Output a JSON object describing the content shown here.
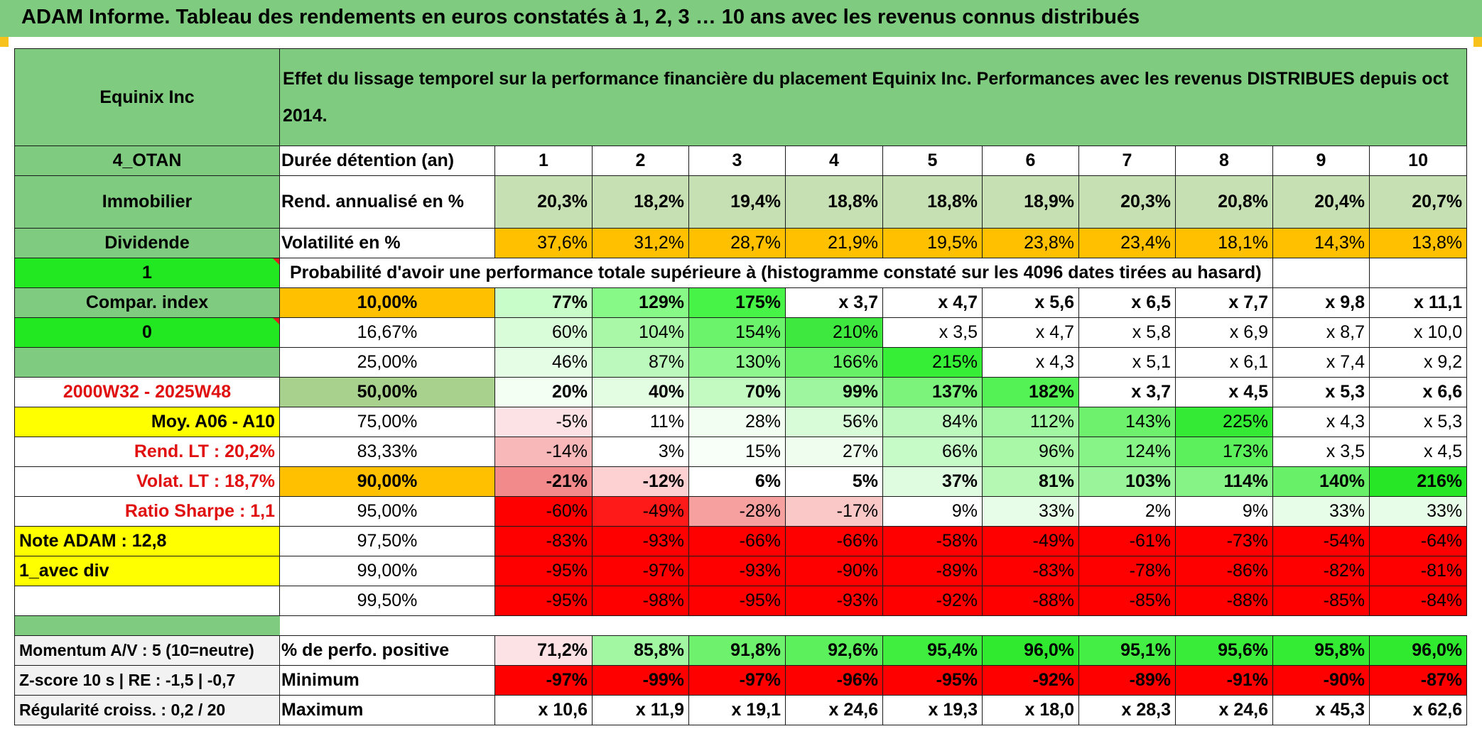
{
  "title": "ADAM Informe. Tableau des rendements en euros constatés à 1, 2, 3 … 10 ans avec les revenus connus distribués",
  "colors": {
    "header_green": "#7fcb7f",
    "accent_orange": "#ffc000",
    "bright_green": "#22e822",
    "bright_red": "#ff0000",
    "yellow": "#ffff00",
    "row_label_green": "#7fcb7f"
  },
  "sidebar": {
    "name": "Equinix Inc",
    "code": "4_OTAN",
    "sector": "Immobilier",
    "type": "Dividende",
    "flag1": "1",
    "compar_index": "Compar. index",
    "flag0": "0",
    "period": "2000W32 - 2025W48",
    "moy": "Moy. A06 - A10",
    "rend_lt": "Rend. LT :   20,2%",
    "volat_lt": "Volat. LT :   18,7%",
    "sharpe": "Ratio Sharpe :    1,1",
    "note": "Note ADAM : 12,8",
    "avec_div": "1_avec div",
    "momentum": "Momentum A/V : 5 (10=neutre)",
    "zscore": "Z-score 10 s | RE : -1,5 | -0,7",
    "regularite": "Régularité croiss. : 0,2 / 20"
  },
  "header": {
    "description": "Effet du lissage temporel sur la performance financière du placement Equinix Inc. Performances avec les revenus DISTRIBUES depuis oct 2014."
  },
  "years_label": "Durée détention (an)",
  "years": [
    "1",
    "2",
    "3",
    "4",
    "5",
    "6",
    "7",
    "8",
    "9",
    "10"
  ],
  "rend_label": "Rend. annualisé en %",
  "rend": [
    "20,3%",
    "18,2%",
    "19,4%",
    "18,8%",
    "18,8%",
    "18,9%",
    "20,3%",
    "20,8%",
    "20,4%",
    "20,7%"
  ],
  "vol_label": "Volatilité en %",
  "vol": [
    "37,6%",
    "31,2%",
    "28,7%",
    "21,9%",
    "19,5%",
    "23,8%",
    "23,4%",
    "18,1%",
    "14,3%",
    "13,8%"
  ],
  "prob_title": "Probabilité d'avoir une performance totale supérieure à (histogramme constaté sur les 4096 dates tirées au hasard)",
  "prob_rows": [
    {
      "pct": "10,00%",
      "values": [
        "77%",
        "129%",
        "175%",
        "x 3,7",
        "x 4,7",
        "x 5,6",
        "x 6,5",
        "x 7,7",
        "x 9,8",
        "x 11,1"
      ]
    },
    {
      "pct": "16,67%",
      "values": [
        "60%",
        "104%",
        "154%",
        "210%",
        "x 3,5",
        "x 4,7",
        "x 5,8",
        "x 6,9",
        "x 8,7",
        "x 10,0"
      ]
    },
    {
      "pct": "25,00%",
      "values": [
        "46%",
        "87%",
        "130%",
        "166%",
        "215%",
        "x 4,3",
        "x 5,1",
        "x 6,1",
        "x 7,4",
        "x 9,2"
      ]
    },
    {
      "pct": "50,00%",
      "values": [
        "20%",
        "40%",
        "70%",
        "99%",
        "137%",
        "182%",
        "x 3,7",
        "x 4,5",
        "x 5,3",
        "x 6,6"
      ]
    },
    {
      "pct": "75,00%",
      "values": [
        "-5%",
        "11%",
        "28%",
        "56%",
        "84%",
        "112%",
        "143%",
        "225%",
        "x 4,3",
        "x 5,3"
      ]
    },
    {
      "pct": "83,33%",
      "values": [
        "-14%",
        "3%",
        "15%",
        "27%",
        "66%",
        "96%",
        "124%",
        "173%",
        "x 3,5",
        "x 4,5"
      ]
    },
    {
      "pct": "90,00%",
      "values": [
        "-21%",
        "-12%",
        "6%",
        "5%",
        "37%",
        "81%",
        "103%",
        "114%",
        "140%",
        "216%"
      ]
    },
    {
      "pct": "95,00%",
      "values": [
        "-60%",
        "-49%",
        "-28%",
        "-17%",
        "9%",
        "33%",
        "2%",
        "9%",
        "33%",
        "33%"
      ]
    },
    {
      "pct": "97,50%",
      "values": [
        "-83%",
        "-93%",
        "-66%",
        "-66%",
        "-58%",
        "-49%",
        "-61%",
        "-73%",
        "-54%",
        "-64%"
      ]
    },
    {
      "pct": "99,00%",
      "values": [
        "-95%",
        "-97%",
        "-93%",
        "-90%",
        "-89%",
        "-83%",
        "-78%",
        "-86%",
        "-82%",
        "-81%"
      ]
    },
    {
      "pct": "99,50%",
      "values": [
        "-95%",
        "-98%",
        "-95%",
        "-93%",
        "-92%",
        "-88%",
        "-85%",
        "-88%",
        "-85%",
        "-84%"
      ]
    }
  ],
  "positive_label": "% de perfo. positive",
  "positive": [
    "71,2%",
    "85,8%",
    "91,8%",
    "92,6%",
    "95,4%",
    "96,0%",
    "95,1%",
    "95,6%",
    "95,8%",
    "96,0%"
  ],
  "min_label": "Minimum",
  "min": [
    "-97%",
    "-99%",
    "-97%",
    "-96%",
    "-95%",
    "-92%",
    "-89%",
    "-91%",
    "-90%",
    "-87%"
  ],
  "max_label": "Maximum",
  "max": [
    "x 10,6",
    "x 11,9",
    "x 19,1",
    "x 24,6",
    "x 19,3",
    "x 18,0",
    "x 28,3",
    "x 24,6",
    "x 45,3",
    "x 62,6"
  ],
  "cell_colors": {
    "rend": [
      "#c6e0b4",
      "#c6e0b4",
      "#c6e0b4",
      "#c6e0b4",
      "#c6e0b4",
      "#c6e0b4",
      "#c6e0b4",
      "#c6e0b4",
      "#c6e0b4",
      "#c6e0b4"
    ],
    "vol": [
      "#ffc000",
      "#ffc000",
      "#ffc000",
      "#ffc000",
      "#ffc000",
      "#ffc000",
      "#ffc000",
      "#ffc000",
      "#ffc000",
      "#ffc000"
    ],
    "prob": [
      [
        "#c8fcc8",
        "#86f986",
        "#48f348",
        "#ffffff",
        "#ffffff",
        "#ffffff",
        "#ffffff",
        "#ffffff",
        "#ffffff",
        "#ffffff"
      ],
      [
        "#d8fdd8",
        "#a8f8a8",
        "#6cf36c",
        "#3ee83e",
        "#ffffff",
        "#ffffff",
        "#ffffff",
        "#ffffff",
        "#ffffff",
        "#ffffff"
      ],
      [
        "#e4fde4",
        "#bcf9bc",
        "#8ef78e",
        "#66f166",
        "#36ee36",
        "#ffffff",
        "#ffffff",
        "#ffffff",
        "#ffffff",
        "#ffffff"
      ],
      [
        "#f4fff4",
        "#e2fde2",
        "#c2fac2",
        "#9ef69e",
        "#7cf47c",
        "#54f254",
        "#ffffff",
        "#ffffff",
        "#ffffff",
        "#ffffff"
      ],
      [
        "#fde2e5",
        "#ffffff",
        "#f2fef2",
        "#d8fbd8",
        "#bcf9bc",
        "#a2f7a2",
        "#6ef26e",
        "#34ea34",
        "#ffffff",
        "#ffffff"
      ],
      [
        "#f8b8ba",
        "#ffffff",
        "#f8fff8",
        "#eefdee",
        "#c6fac6",
        "#a8f8a8",
        "#86f486",
        "#5cf05c",
        "#ffffff",
        "#ffffff"
      ],
      [
        "#f28a8c",
        "#fdd0d2",
        "#ffffff",
        "#ffffff",
        "#e0fce0",
        "#b4f8b4",
        "#9af59a",
        "#86f386",
        "#68f068",
        "#26e626"
      ],
      [
        "#ff0000",
        "#ff1a1a",
        "#f7a0a0",
        "#fbc8c8",
        "#ffffff",
        "#e8fde8",
        "#ffffff",
        "#ffffff",
        "#e8fde8",
        "#e8fde8"
      ],
      [
        "#ff0000",
        "#ff0000",
        "#ff0000",
        "#ff0000",
        "#ff0000",
        "#ff0000",
        "#ff0000",
        "#ff0000",
        "#ff0000",
        "#ff0000"
      ],
      [
        "#ff0000",
        "#ff0000",
        "#ff0000",
        "#ff0000",
        "#ff0000",
        "#ff0000",
        "#ff0000",
        "#ff0000",
        "#ff0000",
        "#ff0000"
      ],
      [
        "#ff0000",
        "#ff0000",
        "#ff0000",
        "#ff0000",
        "#ff0000",
        "#ff0000",
        "#ff0000",
        "#ff0000",
        "#ff0000",
        "#ff0000"
      ]
    ],
    "positive": [
      "#fde2e5",
      "#a2f7a2",
      "#6ef26e",
      "#5cf05c",
      "#40ee40",
      "#30ea30",
      "#44ee44",
      "#3aec3a",
      "#34ec34",
      "#30ea30"
    ],
    "min": [
      "#ff0000",
      "#ff0000",
      "#ff0000",
      "#ff0000",
      "#ff0000",
      "#ff0000",
      "#ff0000",
      "#ff0000",
      "#ff0000",
      "#ff0000"
    ]
  }
}
